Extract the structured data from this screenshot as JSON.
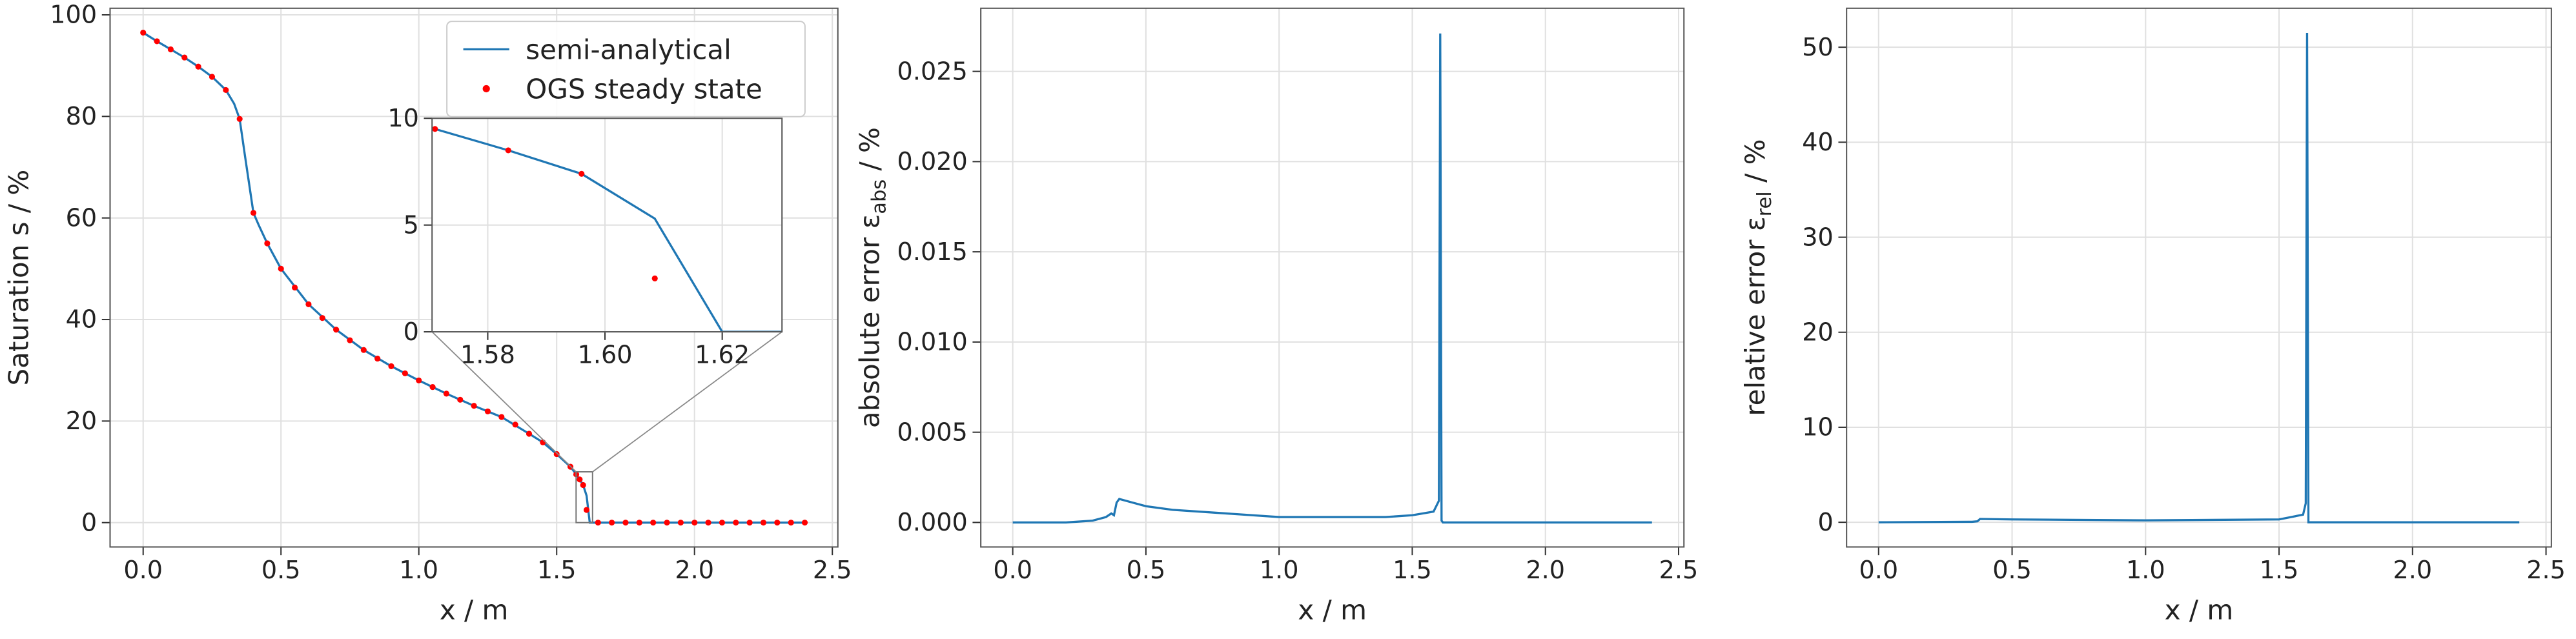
{
  "chart_data": [
    {
      "type": "line",
      "xlabel": "x / m",
      "ylabel": "Saturation s / %",
      "xlim": [
        -0.12,
        2.52
      ],
      "ylim": [
        -4.8,
        101.3
      ],
      "xticks": [
        {
          "value": 0,
          "label": "0.0"
        },
        0.5,
        {
          "value": 1,
          "label": "1.0"
        },
        1.5,
        {
          "value": 2,
          "label": "2.0"
        },
        2.5
      ],
      "yticks": [
        0,
        20,
        40,
        60,
        80,
        100
      ],
      "grid": true,
      "legend": "upper right",
      "series": [
        {
          "name": "semi-analytical",
          "type": "line",
          "color": "#1f77b4",
          "x": [
            0,
            0.05,
            0.1,
            0.15,
            0.2,
            0.25,
            0.3,
            0.33,
            0.35,
            0.37,
            0.4,
            0.42,
            0.45,
            0.5,
            0.6,
            0.7,
            0.8,
            0.9,
            1.0,
            1.1,
            1.2,
            1.3,
            1.4,
            1.45,
            1.5,
            1.55,
            1.571,
            1.5835,
            1.596,
            1.6085,
            1.62,
            1.63,
            2.4
          ],
          "values": [
            96.5,
            94.8,
            93.2,
            91.6,
            89.8,
            87.8,
            85.2,
            82.5,
            79.5,
            72,
            61,
            58.5,
            55,
            50,
            43,
            38,
            34,
            30.8,
            28,
            25.4,
            23,
            20.8,
            17.5,
            15.8,
            13.5,
            11,
            9.5,
            8.5,
            7.4,
            5.3,
            0,
            0,
            0
          ]
        },
        {
          "name": "OGS steady state",
          "type": "scatter",
          "color": "#ff0000",
          "x": [
            0,
            0.05,
            0.1,
            0.15,
            0.2,
            0.25,
            0.3,
            0.35,
            0.4,
            0.45,
            0.5,
            0.55,
            0.6,
            0.65,
            0.7,
            0.75,
            0.8,
            0.85,
            0.9,
            0.95,
            1.0,
            1.05,
            1.1,
            1.15,
            1.2,
            1.25,
            1.3,
            1.35,
            1.4,
            1.45,
            1.5,
            1.55,
            1.571,
            1.5835,
            1.596,
            1.6085,
            1.65,
            1.7,
            1.75,
            1.8,
            1.85,
            1.9,
            1.95,
            2.0,
            2.05,
            2.1,
            2.15,
            2.2,
            2.25,
            2.3,
            2.35,
            2.4
          ],
          "values": [
            96.5,
            94.8,
            93.2,
            91.6,
            89.8,
            87.8,
            85.2,
            79.5,
            61,
            55,
            50,
            46.3,
            43,
            40.3,
            38,
            35.9,
            34,
            32.3,
            30.8,
            29.4,
            28,
            26.7,
            25.4,
            24.2,
            23,
            21.9,
            20.8,
            19.3,
            17.5,
            15.8,
            13.5,
            11,
            9.5,
            8.5,
            7.4,
            2.5,
            0,
            0,
            0,
            0,
            0,
            0,
            0,
            0,
            0,
            0,
            0,
            0,
            0,
            0,
            0,
            0
          ]
        }
      ],
      "inset": {
        "xlim": [
          1.5705,
          1.6302
        ],
        "ylim": [
          0,
          10
        ],
        "xticks": [
          1.58,
          {
            "value": 1.6,
            "label": "1.60"
          },
          1.62
        ],
        "yticks": [
          0,
          5,
          10
        ]
      }
    },
    {
      "type": "line",
      "xlabel": "x / m",
      "ylabel": {
        "text": "absolute error ε",
        "subscript": "abs",
        "suffix": " / %"
      },
      "xlim": [
        -0.12,
        2.52
      ],
      "ylim": [
        -0.00136,
        0.0285
      ],
      "xticks": [
        {
          "value": 0,
          "label": "0.0"
        },
        0.5,
        {
          "value": 1,
          "label": "1.0"
        },
        1.5,
        {
          "value": 2,
          "label": "2.0"
        },
        2.5
      ],
      "yticks": [
        {
          "value": 0,
          "label": "0.000"
        },
        {
          "value": 0.005,
          "label": "0.005"
        },
        {
          "value": 0.01,
          "label": "0.010"
        },
        {
          "value": 0.015,
          "label": "0.015"
        },
        {
          "value": 0.02,
          "label": "0.020"
        },
        {
          "value": 0.025,
          "label": "0.025"
        }
      ],
      "grid": true,
      "series": [
        {
          "type": "line",
          "color": "#1f77b4",
          "x": [
            0,
            0.2,
            0.3,
            0.35,
            0.37,
            0.38,
            0.39,
            0.4,
            0.45,
            0.5,
            0.6,
            0.8,
            1.0,
            1.2,
            1.4,
            1.5,
            1.58,
            1.6,
            1.605,
            1.61,
            1.615,
            2.4
          ],
          "values": [
            0,
            0,
            0.0001,
            0.0003,
            0.0005,
            0.0004,
            0.0011,
            0.0013,
            0.0011,
            0.0009,
            0.0007,
            0.0005,
            0.0003,
            0.0003,
            0.0003,
            0.0004,
            0.0006,
            0.0012,
            0.0271,
            0.0001,
            0,
            0
          ]
        }
      ]
    },
    {
      "type": "line",
      "xlabel": "x / m",
      "ylabel": {
        "text": "relative error ε",
        "subscript": "rel",
        "suffix": " / %"
      },
      "xlim": [
        -0.12,
        2.52
      ],
      "ylim": [
        -2.6,
        54.1
      ],
      "xticks": [
        {
          "value": 0,
          "label": "0.0"
        },
        0.5,
        {
          "value": 1,
          "label": "1.0"
        },
        1.5,
        {
          "value": 2,
          "label": "2.0"
        },
        2.5
      ],
      "yticks": [
        0,
        10,
        20,
        30,
        40,
        50
      ],
      "grid": true,
      "series": [
        {
          "type": "line",
          "color": "#1f77b4",
          "x": [
            0,
            0.35,
            0.37,
            0.38,
            0.5,
            1.0,
            1.5,
            1.59,
            1.6,
            1.605,
            1.61,
            2.4
          ],
          "values": [
            0,
            0.05,
            0.1,
            0.35,
            0.3,
            0.2,
            0.3,
            0.8,
            2,
            51.5,
            0,
            0
          ]
        }
      ]
    }
  ]
}
